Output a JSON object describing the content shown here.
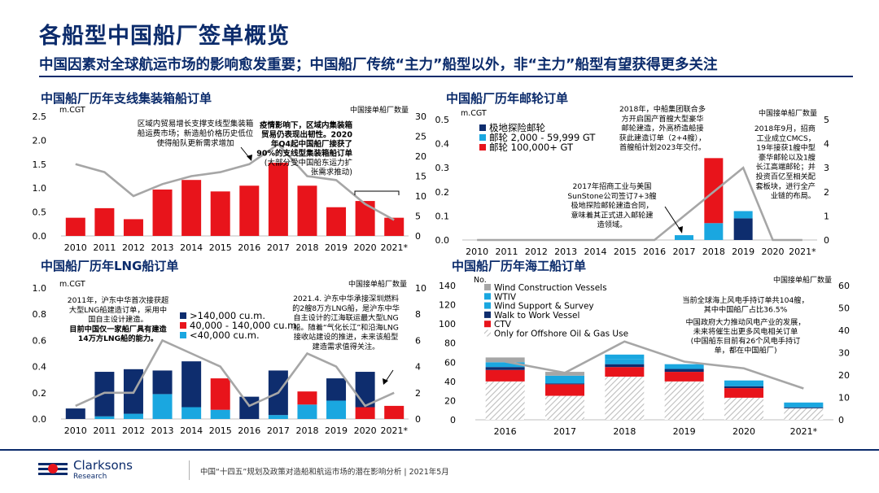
{
  "header": {
    "title": "各船型中国船厂签单概览",
    "subtitle": "中国因素对全球航运市场的影响愈发重要；中国船厂传统“主力”船型以外，非“主力”船型有望获得更多关注"
  },
  "footer": {
    "logo_name": "Clarksons",
    "logo_sub": "Research",
    "text": "中国“十四五”规划及政策对造船和航运市场的潜在影响分析 | 2021年5月"
  },
  "colors": {
    "navy": "#0b2b6b",
    "red": "#e8141b",
    "cyan": "#1aa7e0",
    "darknavy": "#0e2d6e",
    "grey_line": "#a6a6a6",
    "grey_bar": "#a6a6a6",
    "hatch": "#c8c8c8"
  },
  "chart_data": [
    {
      "id": "container",
      "type": "bar",
      "title": "中国船厂历年支线集装箱船订单",
      "left_unit": "m.CGT",
      "right_unit": "中国接单船厂数量",
      "categories": [
        "2010",
        "2011",
        "2012",
        "2013",
        "2014",
        "2015",
        "2016",
        "2017",
        "2018",
        "2019",
        "2020",
        "2021*"
      ],
      "left_ticks": [
        "0.0",
        "0.5",
        "1.0",
        "1.5",
        "2.0",
        "2.5"
      ],
      "right_ticks": [
        "0",
        "5",
        "10",
        "15",
        "20",
        "25",
        "30"
      ],
      "ylim": [
        0,
        2.5
      ],
      "y2lim": [
        0,
        30
      ],
      "bars": [
        0.38,
        0.58,
        0.35,
        0.97,
        1.17,
        0.93,
        1.05,
        1.53,
        1.05,
        0.6,
        0.73,
        0.38
      ],
      "line": [
        18,
        16,
        10,
        13,
        15,
        16,
        18,
        23,
        15,
        14,
        8,
        4
      ],
      "annotations": [
        "区域内贸易增长支撑支线型集装箱",
        "船运费市场；新造船价格历史低位",
        "使得船队更新需求增加",
        "疫情影响下，区域内集装箱",
        "贸易仍表现出韧性。2020",
        "年Q4起中国船厂接获了",
        "90%的支线型集装箱船订单",
        "(大部分受中国船东运力扩",
        "张需求推动)"
      ]
    },
    {
      "id": "cruise",
      "type": "bar",
      "title": "中国船厂历年邮轮订单",
      "left_unit": "m.CGT",
      "right_unit": "中国接单船厂数量",
      "categories": [
        "2010",
        "2011",
        "2012",
        "2013",
        "2014",
        "2015",
        "2016",
        "2017",
        "2018",
        "2019",
        "2020",
        "2021*"
      ],
      "left_ticks": [
        "0.0",
        "0.1",
        "0.2",
        "0.3",
        "0.4",
        "0.5"
      ],
      "right_ticks": [
        "0",
        "1",
        "2",
        "3",
        "4",
        "5"
      ],
      "ylim": [
        0,
        0.5
      ],
      "y2lim": [
        0,
        5
      ],
      "series": [
        {
          "name": "极地探险邮轮",
          "color": "#0e2d6e",
          "values": [
            0,
            0,
            0,
            0,
            0,
            0,
            0,
            0,
            0,
            0.09,
            0,
            0
          ]
        },
        {
          "name": "邮轮 2,000 - 59,999 GT",
          "color": "#1aa7e0",
          "values": [
            0,
            0,
            0,
            0,
            0,
            0,
            0,
            0.02,
            0.07,
            0.03,
            0,
            0
          ]
        },
        {
          "name": "邮轮 100,000+ GT",
          "color": "#e8141b",
          "values": [
            0,
            0,
            0,
            0,
            0,
            0,
            0,
            0,
            0.27,
            0,
            0,
            0
          ]
        }
      ],
      "line": [
        0,
        0,
        0,
        0,
        0,
        0,
        0,
        1,
        2,
        3,
        0,
        0
      ],
      "annotations": [
        "2018年，中船集团联合多",
        "方开启国产首艘大型豪华",
        "邮轮建造，外高桥造船接",
        "获此建造订单（2+4艘），",
        "首艘船计划2023年交付。",
        "2018年9月，招商",
        "工业成立CMCS，",
        "19年接获1艘中型",
        "豪华邮轮以及1艘",
        "长江高端邮轮；并",
        "投资百亿至相关配",
        "套板块，进行全产",
        "业链的布局。",
        "2017年招商工业与美国",
        "SunStone公司签订7+3艘",
        "极地探险邮轮建造合同，",
        "意味着其正式进入邮轮建",
        "造领域。"
      ]
    },
    {
      "id": "lng",
      "type": "bar",
      "title": "中国船厂历年LNG船订单",
      "left_unit": "m.CGT",
      "right_unit": "中国接单船厂数量",
      "categories": [
        "2010",
        "2011",
        "2012",
        "2013",
        "2014",
        "2015",
        "2016",
        "2017",
        "2018",
        "2019",
        "2020",
        "2021*"
      ],
      "left_ticks": [
        "0.0",
        "0.2",
        "0.4",
        "0.6",
        "0.8",
        "1.0"
      ],
      "right_ticks": [
        "0",
        "2",
        "4",
        "6",
        "8",
        "10"
      ],
      "ylim": [
        0,
        1.0
      ],
      "y2lim": [
        0,
        10
      ],
      "series": [
        {
          "name": "<40,000 cu.m.",
          "color": "#1aa7e0",
          "values": [
            0,
            0.02,
            0.04,
            0.19,
            0.09,
            0.07,
            0,
            0.03,
            0.11,
            0.14,
            0,
            0
          ]
        },
        {
          "name": "40,000 - 140,000 cu.m.",
          "color": "#e8141b",
          "values": [
            0,
            0,
            0,
            0,
            0,
            0.24,
            0,
            0,
            0.1,
            0,
            0.09,
            0.1
          ]
        },
        {
          "name": ">140,000 cu.m.",
          "color": "#0e2d6e",
          "values": [
            0.08,
            0.34,
            0.34,
            0.18,
            0.35,
            0,
            0.17,
            0.34,
            0,
            0.17,
            0.27,
            0
          ]
        }
      ],
      "line": [
        1,
        2,
        2,
        6,
        5,
        4,
        1,
        2,
        5,
        4,
        1,
        2
      ],
      "annotations": [
        "2011年，沪东中华首次接获超",
        "大型LNG船建造订单，采用中",
        "国自主设计建造。",
        "目前中国仅一家船厂具有建造",
        "14万方LNG船的能力。",
        "2021.4. 沪东中华承接深圳燃料",
        "的2艘8万方LNG船，是沪东中华",
        "自主设计的江海联运最大型LNG",
        "船。随着“气化长江”和沿海LNG",
        "接收站建设的推进，未来该船型",
        "建造需求值得关注。"
      ]
    },
    {
      "id": "offshore",
      "type": "bar",
      "title": "中国船厂历年海工船订单",
      "left_unit": "No.",
      "right_unit": "中国接单船厂数量",
      "categories": [
        "2016",
        "2017",
        "2018",
        "2019",
        "2020",
        "2021*"
      ],
      "left_ticks": [
        "0",
        "20",
        "40",
        "60",
        "80",
        "100",
        "120",
        "140"
      ],
      "right_ticks": [
        "0",
        "10",
        "20",
        "30",
        "40",
        "50",
        "60"
      ],
      "ylim": [
        0,
        140
      ],
      "y2lim": [
        0,
        60
      ],
      "series": [
        {
          "name": "Only for Offshore Oil & Gas Use",
          "color": "hatch",
          "values": [
            40,
            25,
            45,
            40,
            23,
            12
          ]
        },
        {
          "name": "CTV",
          "color": "#e8141b",
          "values": [
            12,
            12,
            10,
            10,
            10,
            0
          ]
        },
        {
          "name": "Walk to Work Vessel",
          "color": "#0e2d6e",
          "values": [
            3,
            1,
            3,
            3,
            2,
            1
          ]
        },
        {
          "name": "Wind Support & Survey",
          "color": "#1aa7e0",
          "values": [
            5,
            8,
            5,
            5,
            4,
            5
          ]
        },
        {
          "name": "WTIV",
          "color": "#1aa7e0",
          "values": [
            0,
            0,
            5,
            0,
            2,
            0
          ]
        },
        {
          "name": "Wind Construction Vessels",
          "color": "#a6a6a6",
          "values": [
            5,
            4,
            0,
            0,
            0,
            0
          ]
        }
      ],
      "line": [
        26,
        21,
        35,
        26,
        23,
        14
      ],
      "annotations": [
        "当前全球海上风电手持订单共104艘，",
        "其中中国船厂占比36.5%",
        "中国政府大力推动风电产业的发展，",
        "未来将催生出更多风电相关订单",
        "(中国船东目前有26个风电手持订",
        "单，都在中国船厂)"
      ]
    }
  ]
}
